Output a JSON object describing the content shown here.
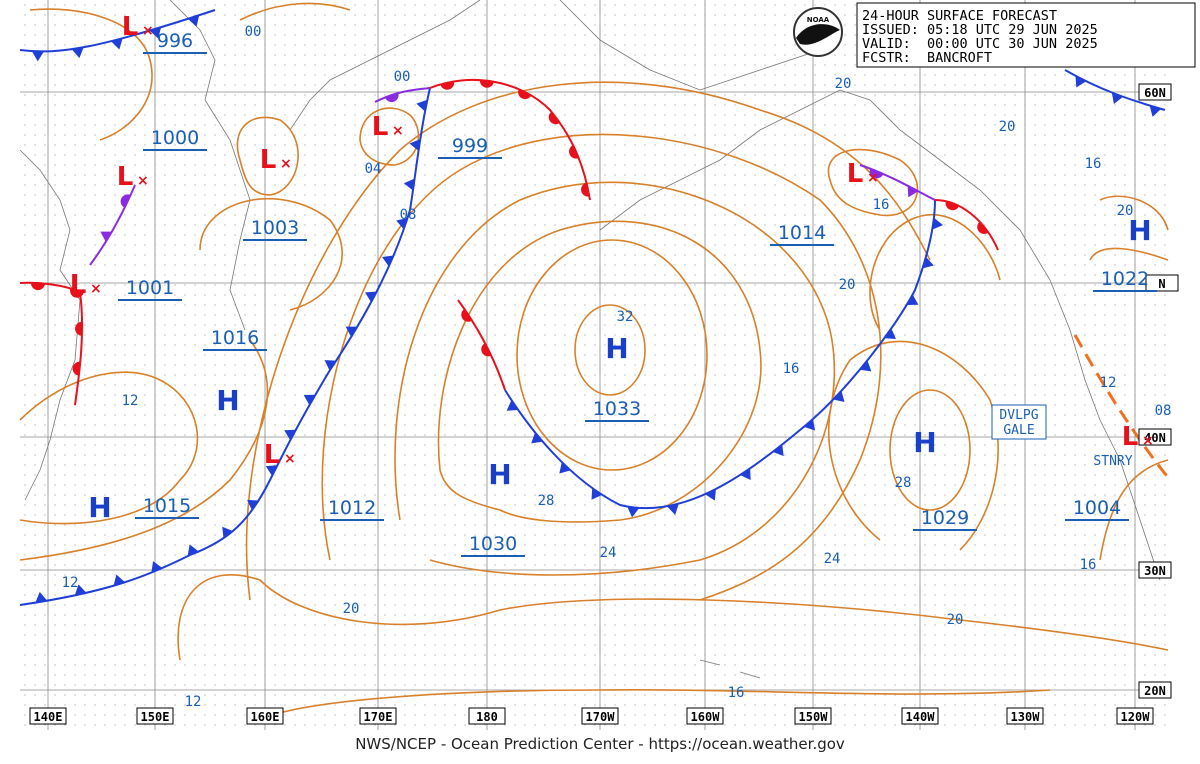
{
  "header": {
    "lines": [
      "24-HOUR SURFACE FORECAST",
      "ISSUED: 05:18 UTC 29 JUN 2025",
      "VALID:  00:00 UTC 30 JUN 2025",
      "FCSTR:  BANCROFT"
    ]
  },
  "logo": "NOAA",
  "longitude_labels": [
    "140E",
    "150E",
    "160E",
    "170E",
    "180",
    "170W",
    "160W",
    "150W",
    "140W",
    "130W",
    "120W"
  ],
  "latitude_labels": [
    "60N",
    "N",
    "40N",
    "30N",
    "20N"
  ],
  "centers": [
    "L",
    "L",
    "L",
    "L",
    "L",
    "H",
    "H",
    "L",
    "H",
    "H",
    "L",
    "H",
    "H",
    "L"
  ],
  "central_pressures": [
    996,
    999,
    1003,
    1000,
    1001,
    1016,
    1015,
    1012,
    1030,
    1033,
    1014,
    1029,
    1022,
    1004
  ],
  "isobar_labels": [
    "00",
    "00",
    "04",
    "08",
    "12",
    "12",
    "12",
    "20",
    "24",
    "28",
    "32",
    "16",
    "20",
    "16",
    "20",
    "20",
    "16",
    "20",
    "12",
    "08",
    "28",
    "24",
    "20",
    "16",
    "16"
  ],
  "warning": [
    "DVLPG",
    "GALE"
  ],
  "front_labels": [
    "STNRY"
  ],
  "footer": "NWS/NCEP - Ocean Prediction Center - https://ocean.weather.gov"
}
